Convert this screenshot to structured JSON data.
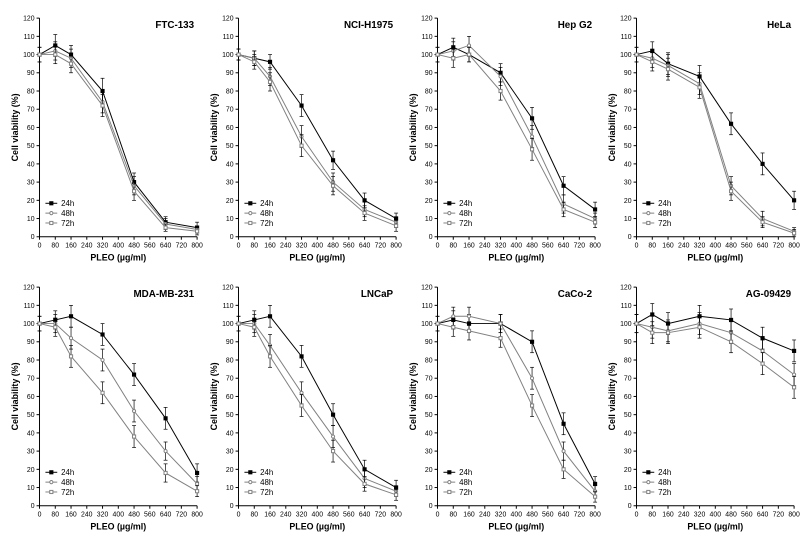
{
  "global": {
    "xlabel": "PLEO (µg/ml)",
    "ylabel": "Cell viability (%)",
    "xticks": [
      0,
      80,
      160,
      240,
      320,
      400,
      480,
      560,
      640,
      720,
      800
    ],
    "yticks": [
      0,
      10,
      20,
      30,
      40,
      50,
      60,
      70,
      80,
      90,
      100,
      110,
      120
    ],
    "xlim": [
      0,
      800
    ],
    "ylim": [
      0,
      120
    ],
    "legend": [
      "24h",
      "48h",
      "72h"
    ],
    "series_style": [
      {
        "marker": "square-filled",
        "line": "solid",
        "color": "#000000"
      },
      {
        "marker": "circle-open",
        "line": "solid",
        "color": "#808080"
      },
      {
        "marker": "square-open",
        "line": "solid",
        "color": "#808080"
      }
    ],
    "axis_color": "#000000",
    "text_color": "#000000",
    "font_size_label": 9,
    "font_size_tick": 7,
    "font_size_title": 10,
    "font_size_legend": 8,
    "line_width": 1,
    "marker_size": 3.2,
    "errbar_color": "#000000",
    "errbar_cap": 2
  },
  "panels": [
    {
      "title": "FTC-133",
      "x": [
        0,
        80,
        160,
        320,
        480,
        640,
        800
      ],
      "s24": {
        "y": [
          100,
          105,
          100,
          80,
          30,
          8,
          5
        ],
        "err": [
          4,
          6,
          5,
          7,
          5,
          3,
          3
        ]
      },
      "s48": {
        "y": [
          100,
          102,
          98,
          74,
          28,
          7,
          4
        ],
        "err": [
          4,
          5,
          5,
          6,
          5,
          3,
          2
        ]
      },
      "s72": {
        "y": [
          100,
          100,
          95,
          72,
          25,
          5,
          3
        ],
        "err": [
          4,
          5,
          5,
          6,
          5,
          2,
          2
        ]
      },
      "legend_pos": "bottom-left"
    },
    {
      "title": "NCI-H1975",
      "x": [
        0,
        80,
        160,
        320,
        480,
        640,
        800
      ],
      "s24": {
        "y": [
          100,
          98,
          96,
          72,
          42,
          20,
          10
        ],
        "err": [
          3,
          4,
          4,
          6,
          5,
          4,
          3
        ]
      },
      "s48": {
        "y": [
          100,
          98,
          88,
          55,
          30,
          15,
          8
        ],
        "err": [
          3,
          4,
          5,
          6,
          5,
          4,
          3
        ]
      },
      "s72": {
        "y": [
          100,
          96,
          85,
          50,
          28,
          13,
          6
        ],
        "err": [
          3,
          4,
          5,
          6,
          5,
          4,
          3
        ]
      },
      "legend_pos": "bottom-left"
    },
    {
      "title": "Hep G2",
      "x": [
        0,
        80,
        160,
        320,
        480,
        640,
        800
      ],
      "s24": {
        "y": [
          100,
          104,
          100,
          90,
          65,
          28,
          15
        ],
        "err": [
          4,
          5,
          4,
          5,
          6,
          5,
          4
        ]
      },
      "s48": {
        "y": [
          100,
          102,
          105,
          88,
          55,
          18,
          10
        ],
        "err": [
          4,
          5,
          5,
          5,
          6,
          5,
          3
        ]
      },
      "s72": {
        "y": [
          100,
          98,
          100,
          80,
          48,
          15,
          8
        ],
        "err": [
          4,
          5,
          4,
          5,
          6,
          4,
          3
        ]
      },
      "legend_pos": "bottom-left"
    },
    {
      "title": "HeLa",
      "x": [
        0,
        80,
        160,
        320,
        480,
        640,
        800
      ],
      "s24": {
        "y": [
          100,
          102,
          95,
          88,
          62,
          40,
          20
        ],
        "err": [
          4,
          5,
          6,
          6,
          6,
          6,
          5
        ]
      },
      "s48": {
        "y": [
          100,
          98,
          94,
          84,
          28,
          10,
          3
        ],
        "err": [
          4,
          5,
          6,
          6,
          5,
          4,
          2
        ]
      },
      "s72": {
        "y": [
          100,
          96,
          92,
          82,
          25,
          8,
          2
        ],
        "err": [
          4,
          5,
          6,
          6,
          5,
          3,
          2
        ]
      },
      "legend_pos": "bottom-left"
    },
    {
      "title": "MDA-MB-231",
      "x": [
        0,
        80,
        160,
        320,
        480,
        640,
        800
      ],
      "s24": {
        "y": [
          100,
          102,
          104,
          94,
          72,
          48,
          18
        ],
        "err": [
          4,
          5,
          6,
          6,
          6,
          6,
          5
        ]
      },
      "s48": {
        "y": [
          100,
          100,
          92,
          80,
          52,
          30,
          12
        ],
        "err": [
          4,
          5,
          6,
          6,
          6,
          5,
          4
        ]
      },
      "s72": {
        "y": [
          100,
          98,
          82,
          62,
          38,
          18,
          8
        ],
        "err": [
          4,
          5,
          6,
          6,
          6,
          5,
          3
        ]
      },
      "legend_pos": "bottom-left"
    },
    {
      "title": "LNCaP",
      "x": [
        0,
        80,
        160,
        320,
        480,
        640,
        800
      ],
      "s24": {
        "y": [
          100,
          102,
          104,
          82,
          50,
          20,
          10
        ],
        "err": [
          4,
          5,
          6,
          6,
          6,
          5,
          4
        ]
      },
      "s48": {
        "y": [
          100,
          100,
          88,
          62,
          38,
          15,
          8
        ],
        "err": [
          4,
          5,
          6,
          6,
          6,
          5,
          3
        ]
      },
      "s72": {
        "y": [
          100,
          98,
          82,
          55,
          30,
          12,
          6
        ],
        "err": [
          4,
          5,
          6,
          6,
          6,
          4,
          3
        ]
      },
      "legend_pos": "bottom-left"
    },
    {
      "title": "CaCo-2",
      "x": [
        0,
        80,
        160,
        320,
        480,
        640,
        800
      ],
      "s24": {
        "y": [
          100,
          102,
          100,
          100,
          90,
          45,
          12
        ],
        "err": [
          4,
          5,
          5,
          5,
          6,
          6,
          4
        ]
      },
      "s48": {
        "y": [
          100,
          104,
          104,
          100,
          70,
          30,
          8
        ],
        "err": [
          4,
          5,
          5,
          5,
          6,
          5,
          3
        ]
      },
      "s72": {
        "y": [
          100,
          98,
          96,
          92,
          55,
          20,
          5
        ],
        "err": [
          4,
          5,
          5,
          5,
          6,
          5,
          3
        ]
      },
      "legend_pos": "bottom-left"
    },
    {
      "title": "AG-09429",
      "x": [
        0,
        80,
        160,
        320,
        480,
        640,
        800
      ],
      "s24": {
        "y": [
          100,
          105,
          100,
          104,
          102,
          92,
          85
        ],
        "err": [
          5,
          6,
          6,
          6,
          6,
          6,
          6
        ]
      },
      "s48": {
        "y": [
          100,
          98,
          96,
          100,
          95,
          85,
          72
        ],
        "err": [
          5,
          6,
          6,
          6,
          6,
          6,
          6
        ]
      },
      "s72": {
        "y": [
          100,
          95,
          95,
          98,
          90,
          78,
          65
        ],
        "err": [
          5,
          6,
          6,
          6,
          6,
          6,
          6
        ]
      },
      "legend_pos": "bottom-left"
    }
  ]
}
